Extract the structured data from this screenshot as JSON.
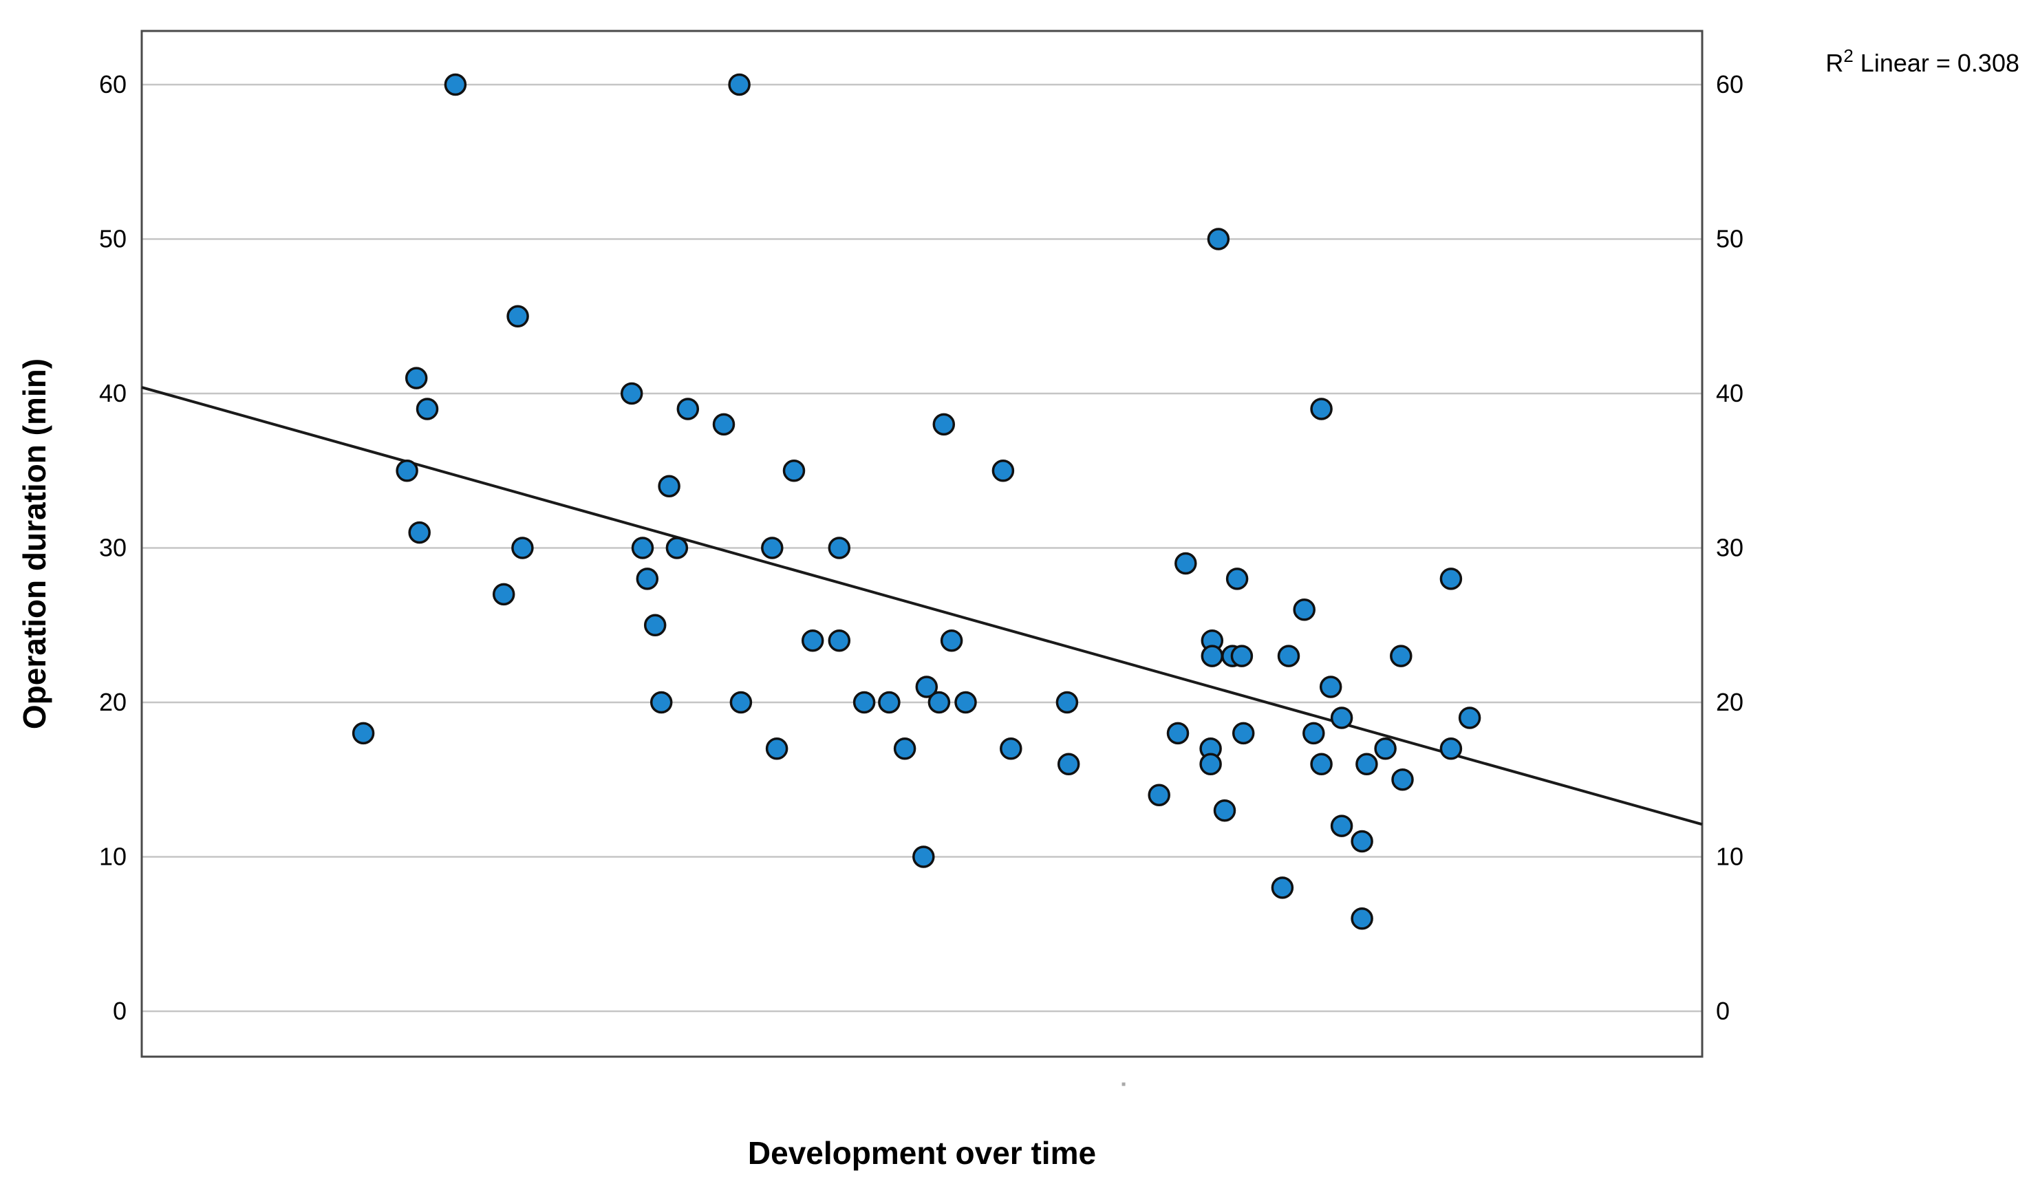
{
  "chart_data": {
    "type": "scatter",
    "title": "",
    "xlabel": "Development over time",
    "ylabel": "Operation duration (min)",
    "annotation": {
      "prefix": "R",
      "sup": "2",
      "suffix": " Linear = 0.308"
    },
    "y_ticks": [
      0,
      10,
      20,
      30,
      40,
      50,
      60
    ],
    "y_axis_range": [
      -2.9,
      63.5
    ],
    "x_axis_range_pct": [
      0,
      100
    ],
    "x_tick_labels": [],
    "grid": true,
    "legend_position": "none",
    "dual_y_axis_labels": true,
    "trendline": {
      "x1_pct": 0,
      "y1": 40.4,
      "x2_pct": 100,
      "y2": 12.1
    },
    "stray_mark": {
      "x_pct": 62.9,
      "y": -4.7
    },
    "points": [
      {
        "x": 20.1,
        "y": 60
      },
      {
        "x": 38.3,
        "y": 60
      },
      {
        "x": 24.1,
        "y": 45
      },
      {
        "x": 69.0,
        "y": 50
      },
      {
        "x": 17.6,
        "y": 41
      },
      {
        "x": 31.4,
        "y": 40
      },
      {
        "x": 18.3,
        "y": 39
      },
      {
        "x": 35.0,
        "y": 39
      },
      {
        "x": 75.6,
        "y": 39
      },
      {
        "x": 37.3,
        "y": 38
      },
      {
        "x": 51.4,
        "y": 38
      },
      {
        "x": 17.0,
        "y": 35
      },
      {
        "x": 41.8,
        "y": 35
      },
      {
        "x": 55.2,
        "y": 35
      },
      {
        "x": 33.8,
        "y": 34
      },
      {
        "x": 17.8,
        "y": 31
      },
      {
        "x": 24.4,
        "y": 30
      },
      {
        "x": 32.1,
        "y": 30
      },
      {
        "x": 34.3,
        "y": 30
      },
      {
        "x": 40.4,
        "y": 30
      },
      {
        "x": 44.7,
        "y": 30
      },
      {
        "x": 66.9,
        "y": 29
      },
      {
        "x": 32.4,
        "y": 28
      },
      {
        "x": 70.2,
        "y": 28
      },
      {
        "x": 83.9,
        "y": 28
      },
      {
        "x": 23.2,
        "y": 27
      },
      {
        "x": 74.5,
        "y": 26
      },
      {
        "x": 32.9,
        "y": 25
      },
      {
        "x": 43.0,
        "y": 24
      },
      {
        "x": 44.7,
        "y": 24
      },
      {
        "x": 51.9,
        "y": 24
      },
      {
        "x": 68.6,
        "y": 24
      },
      {
        "x": 68.6,
        "y": 23
      },
      {
        "x": 69.9,
        "y": 23
      },
      {
        "x": 70.5,
        "y": 23
      },
      {
        "x": 73.5,
        "y": 23
      },
      {
        "x": 80.7,
        "y": 23
      },
      {
        "x": 50.3,
        "y": 21
      },
      {
        "x": 76.2,
        "y": 21
      },
      {
        "x": 33.3,
        "y": 20
      },
      {
        "x": 38.4,
        "y": 20
      },
      {
        "x": 46.3,
        "y": 20
      },
      {
        "x": 47.9,
        "y": 20
      },
      {
        "x": 51.1,
        "y": 20
      },
      {
        "x": 52.8,
        "y": 20
      },
      {
        "x": 59.3,
        "y": 20
      },
      {
        "x": 76.9,
        "y": 19
      },
      {
        "x": 85.1,
        "y": 19
      },
      {
        "x": 14.2,
        "y": 18
      },
      {
        "x": 66.4,
        "y": 18
      },
      {
        "x": 70.6,
        "y": 18
      },
      {
        "x": 75.1,
        "y": 18
      },
      {
        "x": 40.7,
        "y": 17
      },
      {
        "x": 48.9,
        "y": 17
      },
      {
        "x": 55.7,
        "y": 17
      },
      {
        "x": 68.5,
        "y": 17
      },
      {
        "x": 79.7,
        "y": 17
      },
      {
        "x": 83.9,
        "y": 17
      },
      {
        "x": 59.4,
        "y": 16
      },
      {
        "x": 68.5,
        "y": 16
      },
      {
        "x": 75.6,
        "y": 16
      },
      {
        "x": 78.5,
        "y": 16
      },
      {
        "x": 80.8,
        "y": 15
      },
      {
        "x": 65.2,
        "y": 14
      },
      {
        "x": 69.4,
        "y": 13
      },
      {
        "x": 76.9,
        "y": 12
      },
      {
        "x": 78.2,
        "y": 11
      },
      {
        "x": 50.1,
        "y": 10
      },
      {
        "x": 73.1,
        "y": 8
      },
      {
        "x": 78.2,
        "y": 6
      }
    ],
    "colors": {
      "point_fill": "#1e87d0",
      "point_stroke": "#111111",
      "trendline": "#1a1a1a",
      "grid": "#c5c5c5",
      "frame": "#4a4a4a",
      "text": "#000000",
      "background": "#ffffff",
      "stray_mark": "#a9a9a9"
    }
  }
}
